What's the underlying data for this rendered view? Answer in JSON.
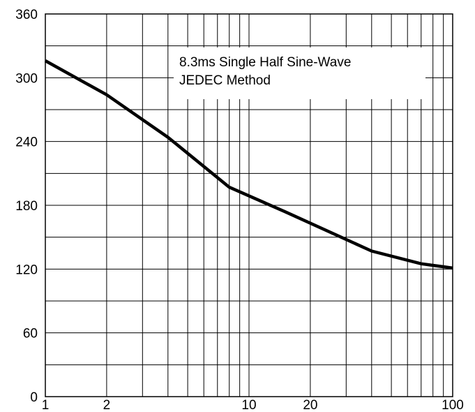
{
  "chart_data": {
    "type": "line",
    "title": "",
    "xlabel": "",
    "ylabel": "",
    "x_scale": "log",
    "xlim": [
      1,
      100
    ],
    "ylim": [
      0,
      360
    ],
    "x_ticks": [
      1,
      2,
      10,
      20,
      100
    ],
    "x_tick_labels": [
      "1",
      "2",
      "10",
      "20",
      "100"
    ],
    "y_ticks": [
      0,
      60,
      120,
      180,
      240,
      300,
      360
    ],
    "y_tick_labels": [
      "0",
      "60",
      "120",
      "180",
      "240",
      "300",
      "360"
    ],
    "grid": true,
    "annotation": {
      "lines": [
        "8.3ms Single Half Sine-Wave",
        "JEDEC Method"
      ]
    },
    "series": [
      {
        "x": [
          1,
          2,
          4,
          8,
          15,
          40,
          70,
          100
        ],
        "y": [
          316,
          284,
          244,
          197,
          174,
          137,
          125,
          121
        ]
      }
    ]
  }
}
